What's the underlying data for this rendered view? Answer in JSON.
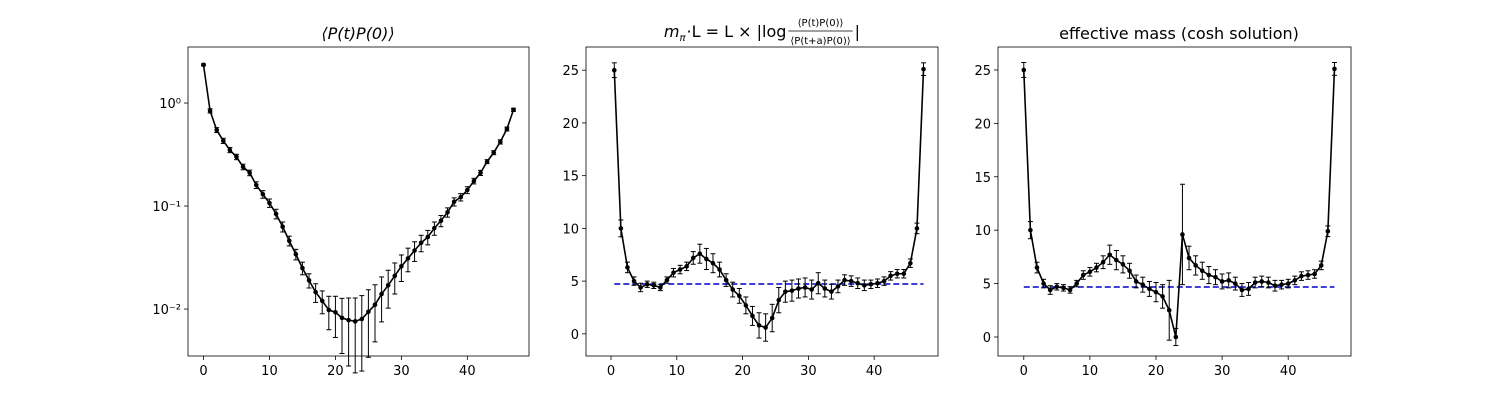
{
  "chart_data": [
    {
      "type": "line",
      "title": "⟨P(t)P(0)⟩",
      "log_y": true,
      "x": [
        0,
        1,
        2,
        3,
        4,
        5,
        6,
        7,
        8,
        9,
        10,
        11,
        12,
        13,
        14,
        15,
        16,
        17,
        18,
        19,
        20,
        21,
        22,
        23,
        24,
        25,
        26,
        27,
        28,
        29,
        30,
        31,
        32,
        33,
        34,
        35,
        36,
        37,
        38,
        39,
        40,
        41,
        42,
        43,
        44,
        45,
        46,
        47
      ],
      "series": [
        {
          "color": "#000000",
          "values": [
            2.35,
            0.84,
            0.547,
            0.43,
            0.35,
            0.3,
            0.24,
            0.21,
            0.16,
            0.13,
            0.107,
            0.084,
            0.063,
            0.046,
            0.034,
            0.025,
            0.019,
            0.0146,
            0.012,
            0.0098,
            0.0093,
            0.0082,
            0.0078,
            0.0076,
            0.008,
            0.0094,
            0.011,
            0.014,
            0.017,
            0.021,
            0.026,
            0.031,
            0.037,
            0.044,
            0.05,
            0.061,
            0.072,
            0.087,
            0.11,
            0.122,
            0.143,
            0.175,
            0.21,
            0.27,
            0.33,
            0.42,
            0.56,
            0.86
          ],
          "errors": [
            0.05,
            0.04,
            0.03,
            0.025,
            0.02,
            0.018,
            0.015,
            0.013,
            0.012,
            0.011,
            0.01,
            0.009,
            0.007,
            0.005,
            0.004,
            0.0035,
            0.003,
            0.003,
            0.003,
            0.0035,
            0.004,
            0.0045,
            0.005,
            0.0052,
            0.0055,
            0.006,
            0.0062,
            0.0065,
            0.0068,
            0.007,
            0.0075,
            0.008,
            0.008,
            0.008,
            0.008,
            0.009,
            0.009,
            0.009,
            0.01,
            0.01,
            0.011,
            0.011,
            0.012,
            0.012,
            0.015,
            0.02,
            0.025,
            0.03
          ]
        }
      ],
      "xlim": [
        -2.35,
        49.35
      ],
      "ylim": [
        0.0035,
        3.5
      ],
      "xticks": [
        0,
        10,
        20,
        30,
        40
      ],
      "yticks": [
        {
          "value": 1,
          "label": "10⁰"
        },
        {
          "value": 0.1,
          "label": "10⁻¹"
        },
        {
          "value": 0.01,
          "label": "10⁻²"
        }
      ]
    },
    {
      "type": "line",
      "log_y": false,
      "title": {
        "m": "m",
        "sub": "π",
        "rest": "·L = L × |log",
        "numerator": "⟨P(t)P(0)⟩",
        "denominator": "⟨P(t+a)P(0)⟩",
        "end": "|"
      },
      "x": [
        0.5,
        1.5,
        2.5,
        3.5,
        4.5,
        5.5,
        6.5,
        7.5,
        8.5,
        9.5,
        10.5,
        11.5,
        12.5,
        13.5,
        14.5,
        15.5,
        16.5,
        17.5,
        18.5,
        19.5,
        20.5,
        21.5,
        22.5,
        23.5,
        24.5,
        25.5,
        26.5,
        27.5,
        28.5,
        29.5,
        30.5,
        31.5,
        32.5,
        33.5,
        34.5,
        35.5,
        36.5,
        37.5,
        38.5,
        39.5,
        40.5,
        41.5,
        42.5,
        43.5,
        44.5,
        45.5,
        46.5,
        47.5
      ],
      "series": [
        {
          "color": "#000000",
          "values": [
            25.0,
            10.0,
            6.3,
            5.0,
            4.4,
            4.7,
            4.6,
            4.4,
            5.1,
            5.8,
            6.1,
            6.4,
            7.2,
            7.6,
            7.1,
            6.7,
            6.1,
            5.1,
            4.2,
            3.6,
            2.7,
            1.7,
            0.8,
            0.6,
            1.5,
            3.2,
            4.0,
            4.1,
            4.3,
            4.4,
            4.2,
            4.8,
            4.3,
            4.0,
            4.5,
            5.1,
            5.0,
            4.8,
            4.6,
            4.7,
            4.8,
            5.0,
            5.5,
            5.7,
            5.7,
            6.7,
            10.0,
            25.1
          ],
          "errors": [
            0.7,
            0.8,
            0.5,
            0.4,
            0.4,
            0.3,
            0.3,
            0.3,
            0.3,
            0.4,
            0.4,
            0.4,
            0.6,
            0.9,
            1.0,
            0.9,
            0.7,
            0.6,
            0.7,
            0.7,
            0.8,
            0.9,
            1.2,
            1.3,
            1.3,
            1.2,
            1.0,
            1.0,
            0.9,
            0.9,
            0.9,
            1.0,
            0.8,
            0.7,
            0.6,
            0.5,
            0.5,
            0.5,
            0.5,
            0.4,
            0.4,
            0.4,
            0.4,
            0.4,
            0.4,
            0.4,
            0.5,
            0.6
          ]
        }
      ],
      "hline": {
        "value": 4.73,
        "color": "#0000cc"
      },
      "xlim": [
        -3.8,
        49.7
      ],
      "ylim": [
        -2.1,
        27.2
      ],
      "xticks": [
        0,
        10,
        20,
        30,
        40
      ],
      "yticks": [
        0,
        5,
        10,
        15,
        20,
        25
      ]
    },
    {
      "type": "line",
      "log_y": false,
      "title": "effective mass (cosh solution)",
      "x": [
        0,
        1,
        2,
        3,
        4,
        5,
        6,
        7,
        8,
        9,
        10,
        11,
        12,
        13,
        14,
        15,
        16,
        17,
        18,
        19,
        20,
        21,
        22,
        23,
        24,
        25,
        26,
        27,
        28,
        29,
        30,
        31,
        32,
        33,
        34,
        35,
        36,
        37,
        38,
        39,
        40,
        41,
        42,
        43,
        44,
        45,
        46,
        47
      ],
      "series": [
        {
          "color": "#000000",
          "values": [
            25.0,
            10.0,
            6.5,
            5.0,
            4.4,
            4.7,
            4.6,
            4.4,
            5.0,
            5.8,
            6.1,
            6.5,
            7.0,
            7.7,
            7.2,
            6.8,
            6.2,
            5.2,
            4.9,
            4.5,
            4.2,
            3.8,
            2.5,
            0.0,
            9.6,
            7.4,
            6.7,
            6.2,
            5.8,
            5.6,
            5.2,
            5.3,
            5.0,
            4.4,
            4.5,
            5.1,
            5.2,
            5.1,
            4.8,
            4.9,
            5.0,
            5.3,
            5.7,
            5.8,
            5.9,
            6.7,
            9.9,
            25.1
          ],
          "errors": [
            0.7,
            0.8,
            0.5,
            0.4,
            0.4,
            0.3,
            0.3,
            0.3,
            0.3,
            0.4,
            0.4,
            0.4,
            0.6,
            0.9,
            0.9,
            0.8,
            0.7,
            0.6,
            0.7,
            0.7,
            0.9,
            1.1,
            2.8,
            0.8,
            4.7,
            1.1,
            0.9,
            0.8,
            0.8,
            0.7,
            0.7,
            0.7,
            0.6,
            0.6,
            0.6,
            0.5,
            0.5,
            0.5,
            0.5,
            0.4,
            0.4,
            0.4,
            0.4,
            0.4,
            0.4,
            0.4,
            0.5,
            0.6
          ]
        }
      ],
      "hline": {
        "value": 4.68,
        "color": "#0000cc"
      },
      "xlim": [
        -3.9,
        49.5
      ],
      "ylim": [
        -1.78,
        27.15
      ],
      "xticks": [
        0,
        10,
        20,
        30,
        40
      ],
      "yticks": [
        0,
        5,
        10,
        15,
        20,
        25
      ]
    }
  ]
}
